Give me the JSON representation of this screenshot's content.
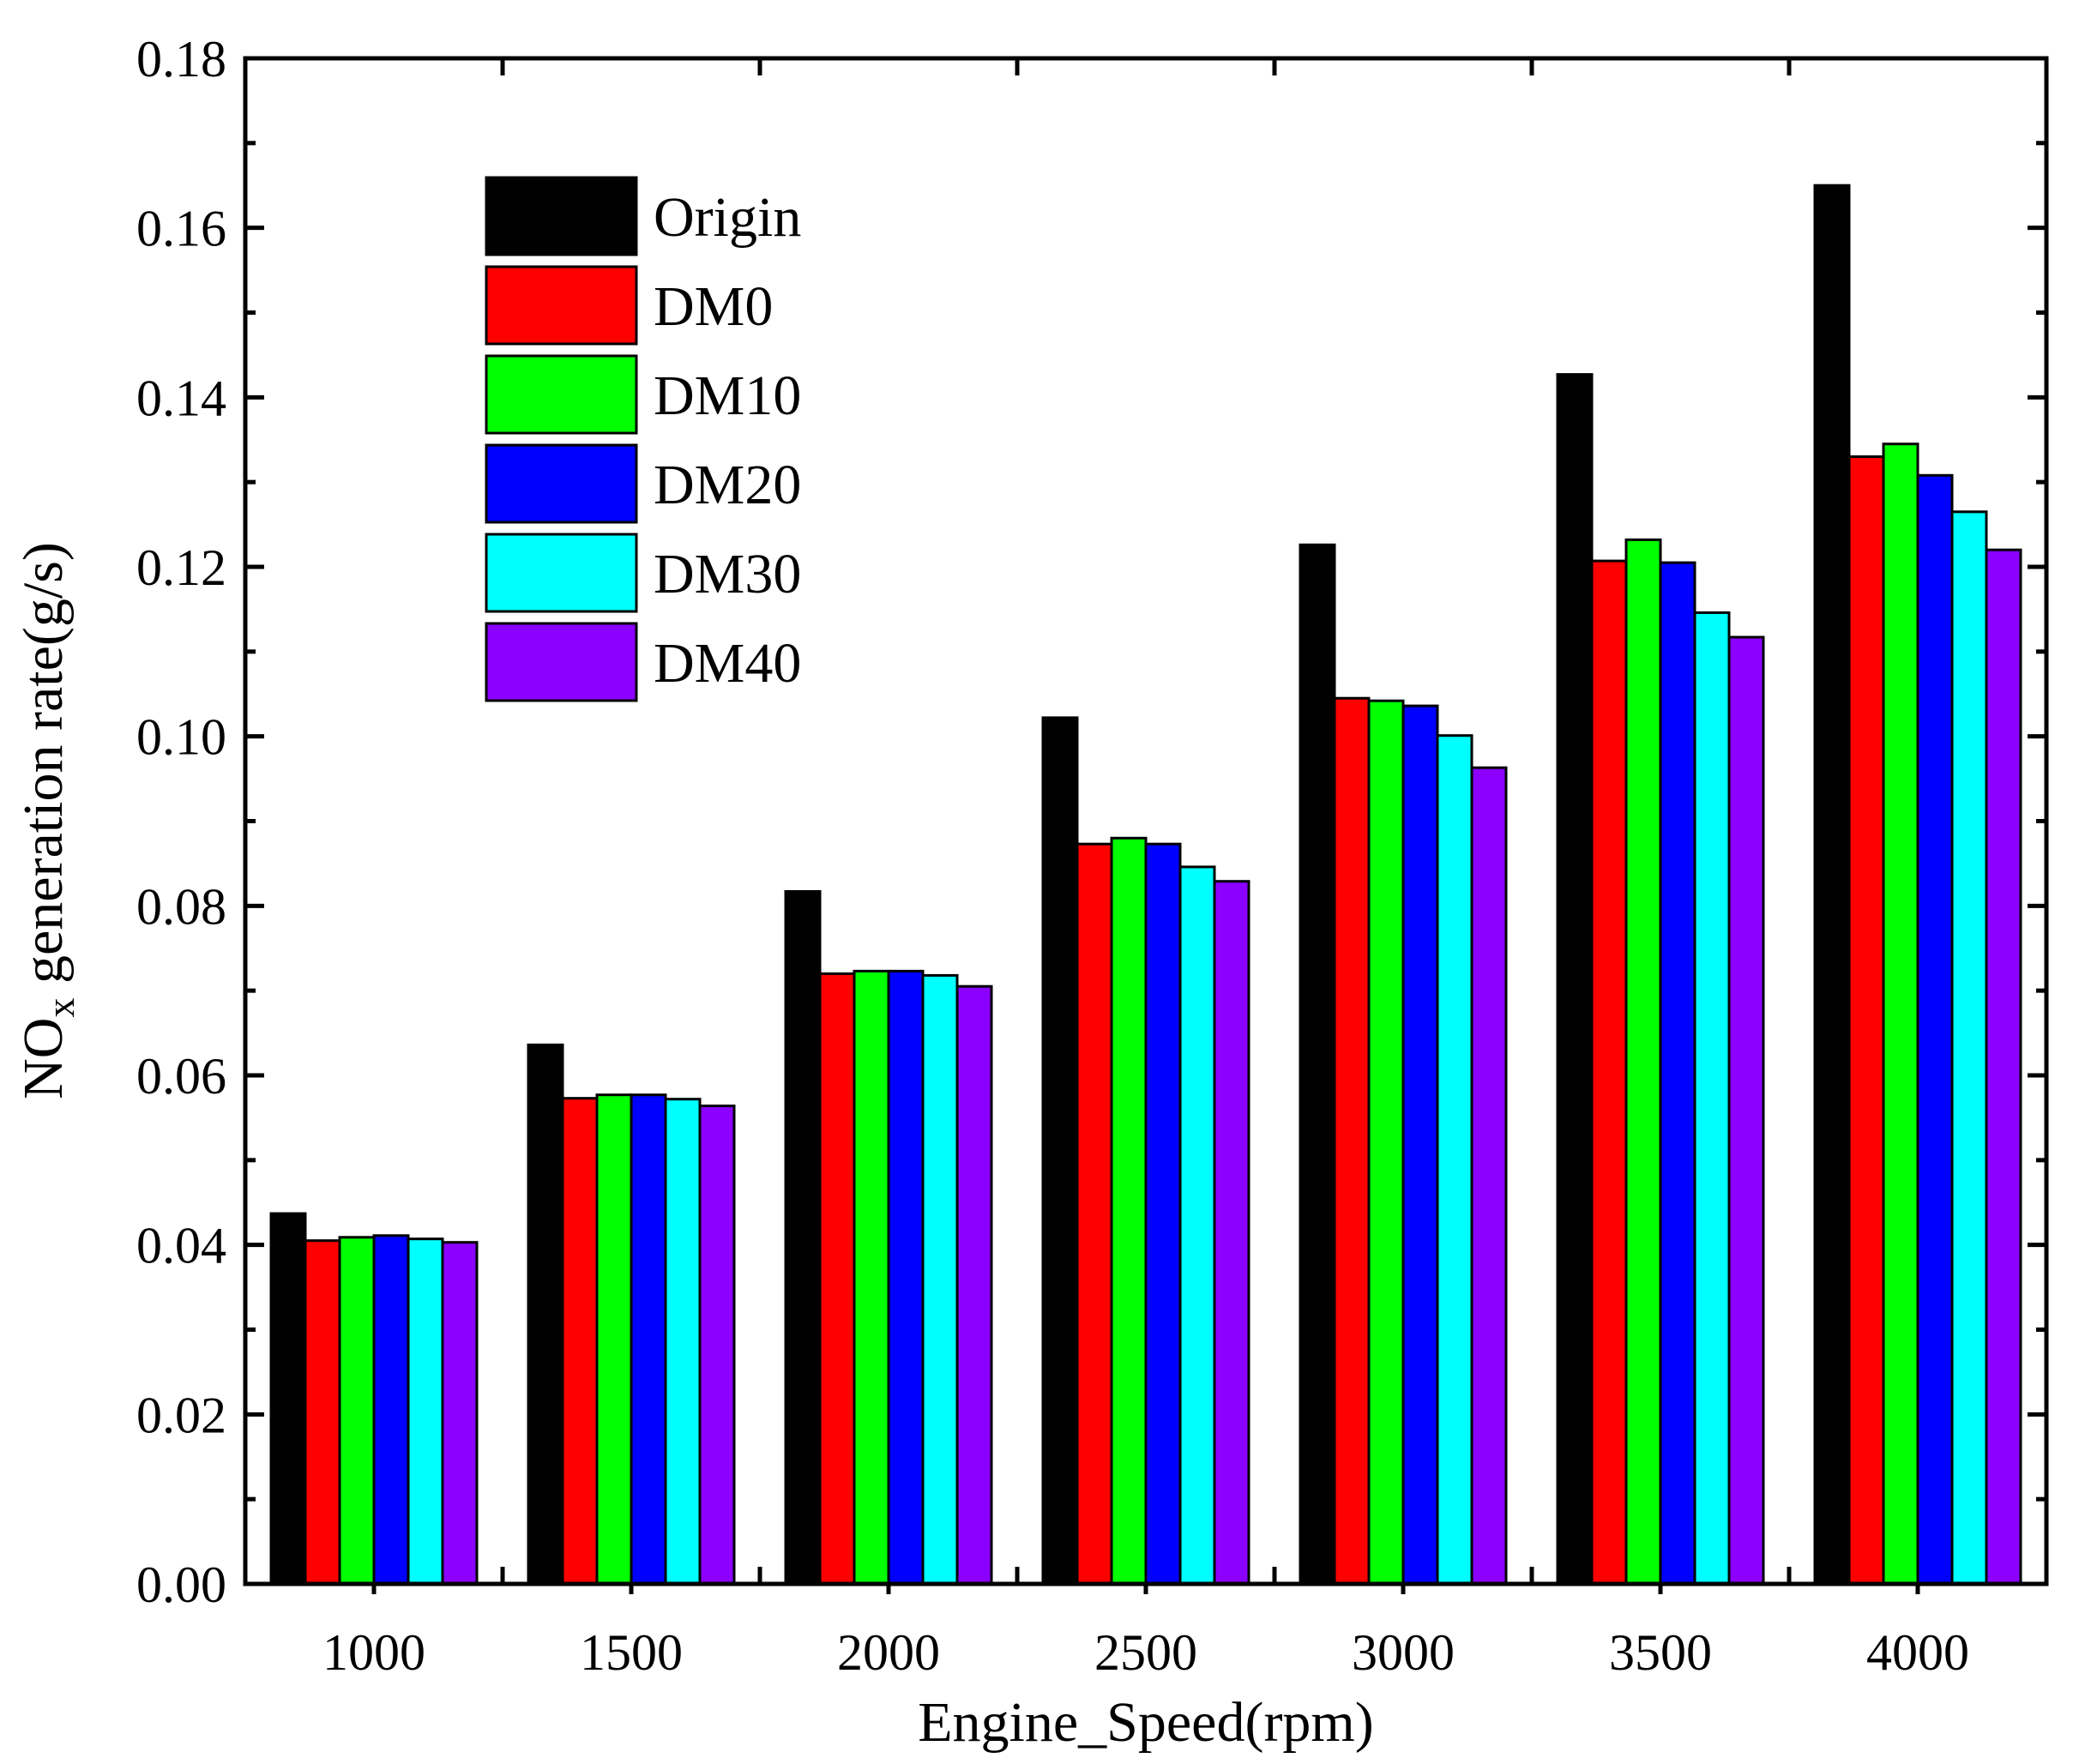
{
  "chart_data": {
    "type": "bar",
    "title": "",
    "xlabel": "Engine_Speed(rpm)",
    "ylabel": {
      "prefix": "NO",
      "subscript": "x",
      "suffix": " generation rate(g/s)"
    },
    "ylim": [
      0,
      0.18
    ],
    "yticks": [
      "0.00",
      "0.02",
      "0.04",
      "0.06",
      "0.08",
      "0.10",
      "0.12",
      "0.14",
      "0.16",
      "0.18"
    ],
    "categories": [
      "1000",
      "1500",
      "2000",
      "2500",
      "3000",
      "3500",
      "4000"
    ],
    "legend_position": "top-left",
    "series": [
      {
        "name": "Origin",
        "color": "#000000",
        "values": [
          0.0437,
          0.0636,
          0.0817,
          0.1022,
          0.1226,
          0.1427,
          0.165
        ]
      },
      {
        "name": "DM0",
        "color": "#ff0000",
        "values": [
          0.0405,
          0.0573,
          0.072,
          0.0873,
          0.1045,
          0.1207,
          0.133
        ]
      },
      {
        "name": "DM10",
        "color": "#00ff00",
        "values": [
          0.0409,
          0.0577,
          0.0723,
          0.088,
          0.1042,
          0.1232,
          0.1345
        ]
      },
      {
        "name": "DM20",
        "color": "#0000ff",
        "values": [
          0.0411,
          0.0577,
          0.0723,
          0.0873,
          0.1036,
          0.1205,
          0.1308
        ]
      },
      {
        "name": "DM30",
        "color": "#00ffff",
        "values": [
          0.0407,
          0.0572,
          0.0718,
          0.0846,
          0.1001,
          0.1146,
          0.1265
        ]
      },
      {
        "name": "DM40",
        "color": "#8b00ff",
        "values": [
          0.0403,
          0.0564,
          0.0705,
          0.0829,
          0.0963,
          0.1117,
          0.122
        ]
      }
    ]
  }
}
